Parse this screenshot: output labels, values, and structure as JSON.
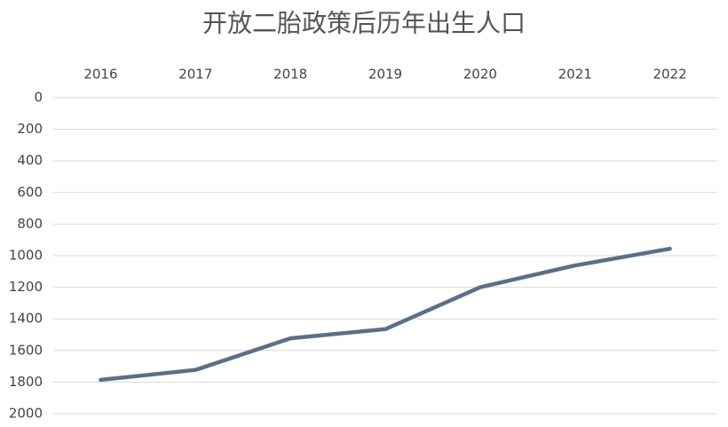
{
  "chart_data": {
    "type": "line",
    "title": "开放二胎政策后历年出生人口",
    "categories": [
      "2016",
      "2017",
      "2018",
      "2019",
      "2020",
      "2021",
      "2022"
    ],
    "series": [
      {
        "name": "出生人口",
        "color": "#5a7089",
        "values": [
          1786,
          1723,
          1523,
          1465,
          1200,
          1062,
          956
        ]
      }
    ],
    "ylim": [
      0,
      2000
    ],
    "y_inverted": true,
    "yticks": [
      0,
      200,
      400,
      600,
      800,
      1000,
      1200,
      1400,
      1600,
      1800,
      2000
    ],
    "x_axis_position": "top",
    "grid": true
  }
}
